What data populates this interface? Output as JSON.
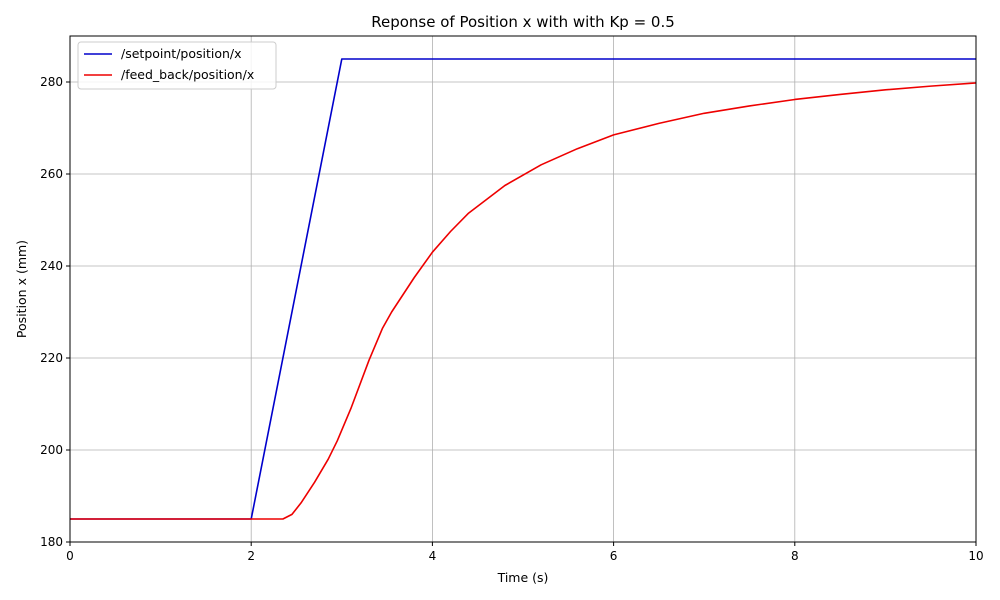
{
  "chart_data": {
    "type": "line",
    "title": "Reponse of Position x with with Kp = 0.5",
    "xlabel": "Time (s)",
    "ylabel": "Position x (mm)",
    "xlim": [
      0,
      10
    ],
    "ylim": [
      180,
      290
    ],
    "xticks": [
      0,
      2,
      4,
      6,
      8,
      10
    ],
    "yticks": [
      180,
      200,
      220,
      240,
      260,
      280
    ],
    "grid": true,
    "legend_position": "top-left",
    "series": [
      {
        "name": "/setpoint/position/x",
        "color": "#0000cc",
        "x": [
          0,
          2.0,
          3.0,
          10
        ],
        "y": [
          185,
          185,
          285,
          285
        ]
      },
      {
        "name": "/feed_back/position/x",
        "color": "#ee0000",
        "x": [
          0,
          2.35,
          2.45,
          2.55,
          2.7,
          2.85,
          2.95,
          3.1,
          3.3,
          3.45,
          3.55,
          3.8,
          4.0,
          4.2,
          4.4,
          4.8,
          5.2,
          5.6,
          6.0,
          6.5,
          7.0,
          7.5,
          8.0,
          8.5,
          9.0,
          9.5,
          10.0
        ],
        "y": [
          185,
          185,
          186,
          188.5,
          193,
          198,
          202,
          209,
          219.5,
          226.5,
          230,
          237.5,
          243,
          247.5,
          251.5,
          257.5,
          262,
          265.5,
          268.5,
          271,
          273.2,
          274.8,
          276.2,
          277.3,
          278.3,
          279.1,
          279.8
        ]
      }
    ]
  }
}
